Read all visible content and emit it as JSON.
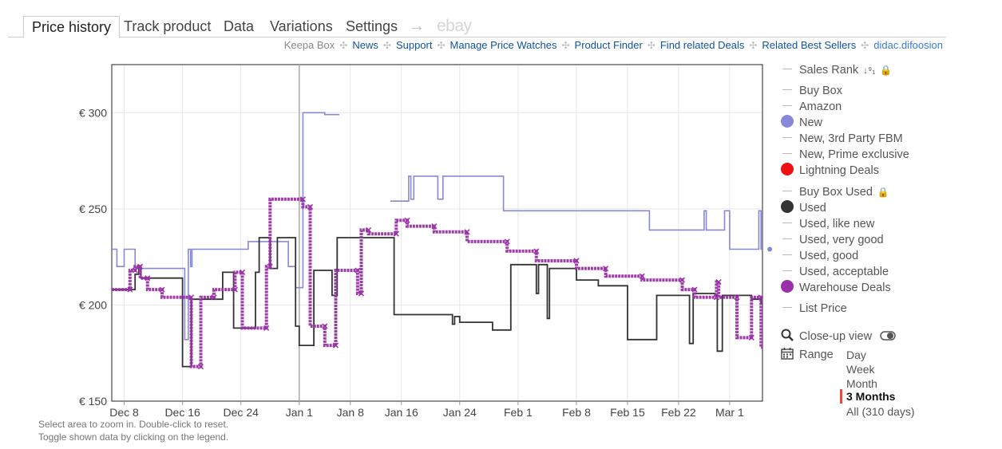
{
  "tabs": {
    "items": [
      "Price history",
      "Track product",
      "Data",
      "Variations",
      "Settings"
    ],
    "arrow": "→",
    "ebay": "ebay"
  },
  "links": {
    "keepa_box": "Keepa Box",
    "items": [
      "News",
      "Support",
      "Manage Price Watches",
      "Product Finder",
      "Find related Deals",
      "Related Best Sellers"
    ],
    "user": "didac.difoosion",
    "separator": "✣"
  },
  "hints": {
    "line1": "Select area to zoom in. Double-click to reset.",
    "line2": "Toggle shown data by clicking on the legend."
  },
  "legend": {
    "sales_rank": "Sales Rank",
    "sales_rank_sort_glyph": "↓⁹₁",
    "lock_glyph": "🔒",
    "items": [
      {
        "label": "Buy Box",
        "marker": "line"
      },
      {
        "label": "Amazon",
        "marker": "line"
      },
      {
        "label": "New",
        "marker": "dot",
        "color": "#8888d8"
      },
      {
        "label": "New, 3rd Party FBM",
        "marker": "line"
      },
      {
        "label": "New, Prime exclusive",
        "marker": "line"
      },
      {
        "label": "Lightning Deals",
        "marker": "dot",
        "color": "#ee1111"
      },
      {
        "label": "Buy Box Used",
        "marker": "line",
        "lock": true
      },
      {
        "label": "Used",
        "marker": "dot",
        "color": "#333333"
      },
      {
        "label": "Used, like new",
        "marker": "line"
      },
      {
        "label": "Used, very good",
        "marker": "line"
      },
      {
        "label": "Used, good",
        "marker": "line"
      },
      {
        "label": "Used, acceptable",
        "marker": "line"
      },
      {
        "label": "Warehouse Deals",
        "marker": "dot",
        "color": "#9b30a8"
      },
      {
        "label": "List Price",
        "marker": "line"
      }
    ],
    "closeup_label": "Close-up view",
    "closeup_icon": "magnifier",
    "range_label": "Range",
    "range_icon": "calendar",
    "range_options": [
      "Day",
      "Week",
      "Month",
      "3 Months",
      "All (310 days)"
    ],
    "range_selected": "3 Months"
  },
  "chart_data": {
    "type": "line",
    "title": "",
    "xlabel": "",
    "ylabel": "",
    "y_currency": "€",
    "ylim": [
      150,
      325
    ],
    "y_ticks": [
      150,
      200,
      250,
      300
    ],
    "y_tick_labels": [
      "€ 150",
      "€ 200",
      "€ 250",
      "€ 300"
    ],
    "xlim": [
      -1.7,
      87.5
    ],
    "x_ticks": [
      0,
      8,
      16,
      24,
      31,
      38,
      46,
      54,
      62,
      69,
      76,
      83
    ],
    "x_tick_labels": [
      "Dec 8",
      "Dec 16",
      "Dec 24",
      "Jan 1",
      "Jan 8",
      "Jan 16",
      "Jan 24",
      "Feb 1",
      "Feb 8",
      "Feb 15",
      "Feb 22",
      "Mar 1"
    ],
    "x_unit": "days since Dec 8",
    "marker_line_x": 24,
    "series": [
      {
        "name": "New",
        "color": "#8888d8",
        "style": "step",
        "segments": [
          [
            [
              -1.7,
              229
            ],
            [
              -1,
              229
            ],
            [
              -1,
              220
            ],
            [
              0,
              220
            ],
            [
              0,
              229
            ],
            [
              1.5,
              229
            ],
            [
              1.5,
              219
            ],
            [
              8.3,
              219
            ],
            [
              8.3,
              182
            ],
            [
              8.8,
              182
            ],
            [
              8.8,
              229
            ],
            [
              9.1,
              229
            ],
            [
              9.1,
              220
            ],
            [
              9.3,
              220
            ],
            [
              9.3,
              229
            ],
            [
              17,
              229
            ],
            [
              17,
              233
            ],
            [
              22.5,
              233
            ],
            [
              22.5,
              220
            ],
            [
              23.5,
              220
            ],
            [
              23.5,
              209
            ],
            [
              24.5,
              209
            ],
            [
              24.5,
              300
            ],
            [
              27.5,
              300
            ],
            [
              27.5,
              299
            ],
            [
              29.5,
              299
            ]
          ],
          [
            [
              36.5,
              254
            ],
            [
              39,
              254
            ],
            [
              39,
              267
            ],
            [
              39.3,
              267
            ],
            [
              39.3,
              255
            ],
            [
              39.7,
              255
            ],
            [
              39.7,
              267
            ],
            [
              43,
              267
            ],
            [
              43,
              255
            ],
            [
              43.7,
              255
            ],
            [
              43.7,
              267
            ],
            [
              52,
              267
            ],
            [
              52,
              249
            ],
            [
              72,
              249
            ],
            [
              72,
              239
            ],
            [
              79.5,
              239
            ],
            [
              79.5,
              249
            ],
            [
              79.8,
              249
            ],
            [
              79.8,
              239
            ],
            [
              82.3,
              239
            ],
            [
              82.3,
              249
            ],
            [
              83,
              249
            ],
            [
              83,
              229
            ],
            [
              87,
              229
            ],
            [
              87,
              249
            ],
            [
              87.3,
              249
            ],
            [
              87.3,
              229
            ],
            [
              89,
              229
            ]
          ]
        ]
      },
      {
        "name": "Used",
        "color": "#333333",
        "style": "step",
        "segments": [
          [
            [
              -1.7,
              208
            ],
            [
              1.5,
              208
            ],
            [
              1.5,
              216
            ],
            [
              2,
              216
            ],
            [
              2,
              220
            ],
            [
              2.3,
              220
            ],
            [
              2.3,
              214
            ],
            [
              8,
              214
            ],
            [
              8,
              168
            ],
            [
              9.2,
              168
            ],
            [
              9.2,
              203
            ],
            [
              13.5,
              203
            ],
            [
              13.5,
              217
            ],
            [
              15,
              217
            ],
            [
              15,
              188
            ],
            [
              18,
              188
            ],
            [
              18,
              217
            ],
            [
              18.5,
              217
            ],
            [
              18.5,
              235
            ],
            [
              20,
              235
            ],
            [
              20,
              219
            ],
            [
              21,
              219
            ],
            [
              21,
              235
            ],
            [
              23.5,
              235
            ],
            [
              23.5,
              189
            ],
            [
              24,
              189
            ],
            [
              24,
              179
            ],
            [
              26,
              179
            ],
            [
              26,
              218
            ],
            [
              28.5,
              218
            ],
            [
              28.5,
              205
            ],
            [
              29.2,
              205
            ],
            [
              29.2,
              235
            ],
            [
              37,
              235
            ],
            [
              37,
              195
            ],
            [
              45,
              195
            ],
            [
              45,
              190
            ],
            [
              45.3,
              190
            ],
            [
              45.3,
              194
            ],
            [
              46,
              194
            ],
            [
              46,
              191
            ],
            [
              50.5,
              191
            ],
            [
              50.5,
              187
            ],
            [
              53,
              187
            ],
            [
              53,
              221
            ],
            [
              56.5,
              221
            ],
            [
              56.5,
              206
            ],
            [
              56.8,
              206
            ],
            [
              56.8,
              221
            ],
            [
              58,
              221
            ],
            [
              58,
              193
            ],
            [
              58.3,
              193
            ],
            [
              58.3,
              219
            ],
            [
              62,
              219
            ],
            [
              62,
              213
            ],
            [
              65,
              213
            ],
            [
              65,
              210
            ],
            [
              69,
              210
            ],
            [
              69,
              182
            ],
            [
              73,
              182
            ],
            [
              73,
              205
            ],
            [
              77.5,
              205
            ],
            [
              77.5,
              180
            ],
            [
              78,
              180
            ],
            [
              78,
              206
            ],
            [
              81,
              206
            ],
            [
              81,
              205
            ],
            [
              81.3,
              205
            ],
            [
              81.3,
              176
            ],
            [
              82,
              176
            ],
            [
              82,
              205
            ],
            [
              86,
              205
            ],
            [
              86,
              203
            ],
            [
              87.3,
              203
            ],
            [
              87.3,
              201
            ],
            [
              89,
              201
            ]
          ]
        ]
      },
      {
        "name": "Warehouse Deals",
        "color": "#9b30a8",
        "style": "step",
        "segments": [
          [
            [
              -1.7,
              208
            ],
            [
              0.8,
              208
            ],
            [
              0.8,
              218
            ],
            [
              1.5,
              218
            ],
            [
              1.5,
              220
            ],
            [
              2.2,
              220
            ],
            [
              2.2,
              214
            ],
            [
              3.2,
              214
            ],
            [
              3.2,
              208
            ],
            [
              5.2,
              208
            ],
            [
              5.2,
              204
            ],
            [
              9.2,
              204
            ],
            [
              9.2,
              168
            ],
            [
              10.5,
              168
            ],
            [
              10.5,
              204
            ],
            [
              12.3,
              204
            ],
            [
              12.3,
              208
            ],
            [
              15.2,
              208
            ],
            [
              15.2,
              217
            ],
            [
              16.2,
              217
            ],
            [
              16.2,
              188
            ],
            [
              19.5,
              188
            ],
            [
              19.5,
              220
            ],
            [
              20,
              220
            ],
            [
              20,
              255
            ],
            [
              24.5,
              255
            ],
            [
              24.5,
              251
            ],
            [
              25.5,
              251
            ],
            [
              25.5,
              189
            ],
            [
              27.5,
              189
            ],
            [
              27.5,
              179
            ],
            [
              29,
              179
            ],
            [
              29,
              218
            ],
            [
              32,
              218
            ],
            [
              32,
              206
            ],
            [
              32.5,
              206
            ],
            [
              32.5,
              239
            ],
            [
              33.5,
              239
            ],
            [
              33.5,
              237
            ],
            [
              37.3,
              237
            ],
            [
              37.3,
              244
            ],
            [
              38.8,
              244
            ],
            [
              38.8,
              241
            ],
            [
              42.5,
              241
            ],
            [
              42.5,
              238
            ],
            [
              47,
              238
            ],
            [
              47,
              233
            ],
            [
              52.5,
              233
            ],
            [
              52.5,
              228
            ],
            [
              56.5,
              228
            ],
            [
              56.5,
              223
            ],
            [
              62,
              223
            ],
            [
              62,
              219
            ],
            [
              66,
              219
            ],
            [
              66,
              215
            ],
            [
              71,
              215
            ],
            [
              71,
              213
            ],
            [
              76.5,
              213
            ],
            [
              76.5,
              208
            ],
            [
              78.2,
              208
            ],
            [
              78.2,
              204
            ],
            [
              81.2,
              204
            ],
            [
              81.2,
              212
            ],
            [
              81.5,
              212
            ],
            [
              81.5,
              204
            ],
            [
              84,
              204
            ],
            [
              84,
              183
            ],
            [
              86,
              183
            ],
            [
              86,
              204
            ],
            [
              87.3,
              204
            ],
            [
              87.3,
              178
            ],
            [
              89,
              178
            ]
          ]
        ]
      }
    ],
    "endpoint": {
      "series": "New",
      "x": 88.5,
      "y": 229
    }
  }
}
